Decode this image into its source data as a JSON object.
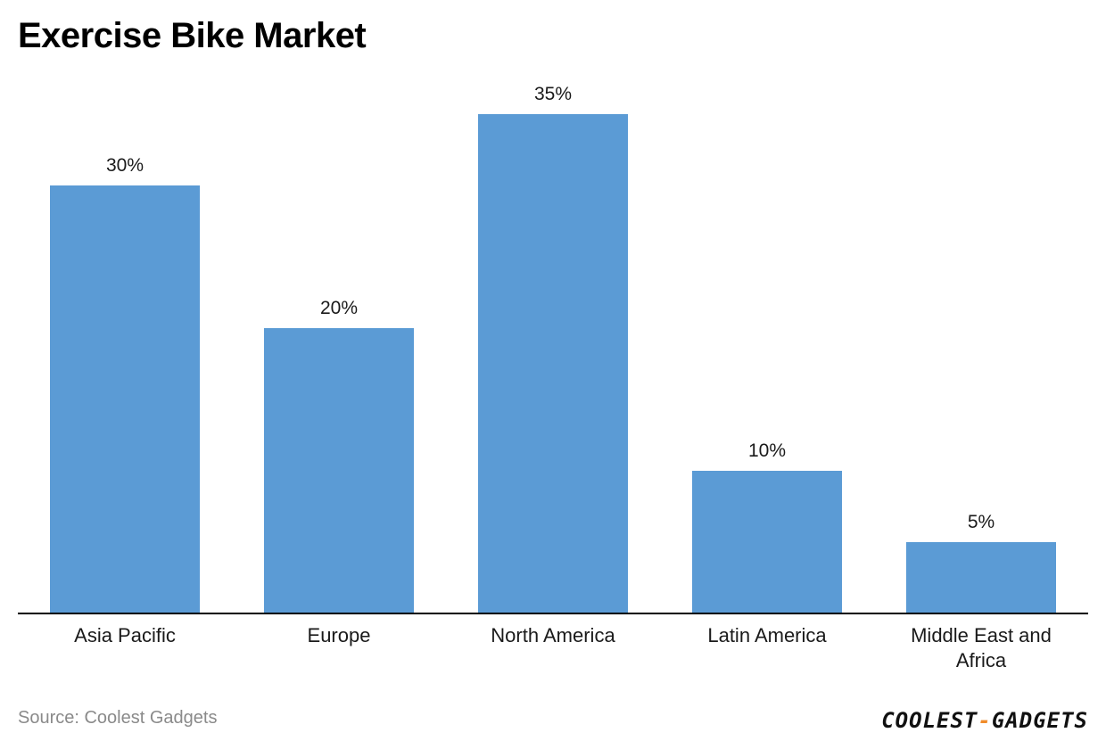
{
  "title": "Exercise Bike Market",
  "source": "Source: Coolest Gadgets",
  "logo": {
    "part1": "COOLEST",
    "dash": "-",
    "part2": "GADGETS"
  },
  "colors": {
    "bar": "#5b9bd5",
    "axis": "#000000",
    "label": "#1a1a1a",
    "logo_accent": "#f08c2b"
  },
  "chart_data": {
    "type": "bar",
    "title": "Exercise Bike Market",
    "categories": [
      "Asia Pacific",
      "Europe",
      "North America",
      "Latin America",
      "Middle East and Africa"
    ],
    "values": [
      30,
      20,
      35,
      10,
      5
    ],
    "data_labels": [
      "30%",
      "20%",
      "35%",
      "10%",
      "5%"
    ],
    "ylim": [
      0,
      35
    ],
    "grid": false,
    "legend": "none"
  }
}
